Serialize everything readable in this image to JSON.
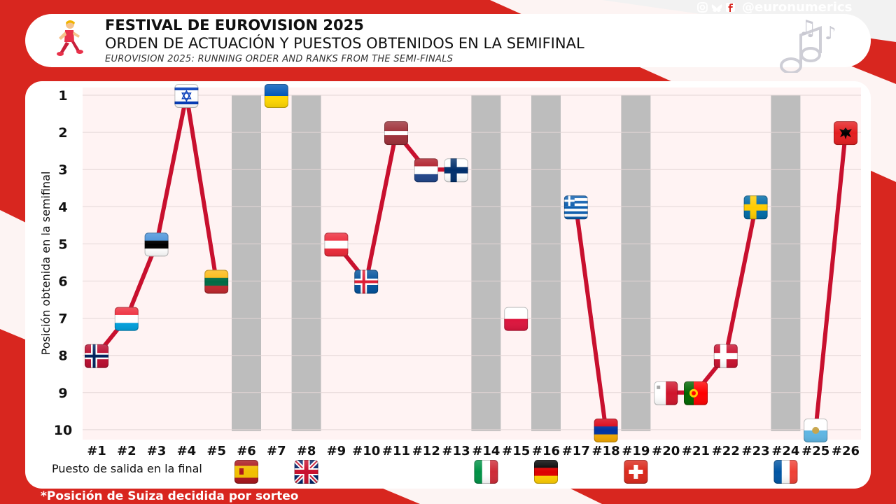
{
  "header": {
    "title": "FESTIVAL DE EUROVISION 2025",
    "subtitle": "ORDEN DE ACTUACIÓN Y PUESTOS OBTENIDOS EN LA SEMIFINAL",
    "subtitle_en": "EUROVISION 2025: RUNNING ORDER AND RANKS FROM THE SEMI-FINALS",
    "handle": "@euronumerics",
    "social_icons": [
      "instagram-icon",
      "bluesky-icon",
      "facebook-icon"
    ]
  },
  "footnote": "*Posición de Suiza decidida por sorteo",
  "colors": {
    "line": "#c8102e",
    "column": "#bdbdbd",
    "background": "#d8261f",
    "plot_bg": "#fff3f3"
  },
  "chart_data": {
    "type": "line",
    "ylabel": "Posición obtenida en la semifinal",
    "xlabel": "Puesto de salida en la final",
    "ylim": [
      1,
      10
    ],
    "y_reversed": true,
    "y_ticks": [
      "1",
      "2",
      "3",
      "4",
      "5",
      "6",
      "7",
      "8",
      "9",
      "10"
    ],
    "categories": [
      "#1",
      "#2",
      "#3",
      "#4",
      "#5",
      "#6",
      "#7",
      "#8",
      "#9",
      "#10",
      "#11",
      "#12",
      "#13",
      "#14",
      "#15",
      "#16",
      "#17",
      "#18",
      "#19",
      "#20",
      "#21",
      "#22",
      "#23",
      "#24",
      "#25",
      "#26"
    ],
    "points": [
      {
        "order": 1,
        "rank": 8,
        "flag": "norway"
      },
      {
        "order": 2,
        "rank": 7,
        "flag": "luxembourg"
      },
      {
        "order": 3,
        "rank": 5,
        "flag": "estonia"
      },
      {
        "order": 4,
        "rank": 1,
        "flag": "israel"
      },
      {
        "order": 5,
        "rank": 6,
        "flag": "lithuania"
      },
      {
        "order": 7,
        "rank": 1,
        "flag": "ukraine"
      },
      {
        "order": 9,
        "rank": 5,
        "flag": "austria"
      },
      {
        "order": 10,
        "rank": 6,
        "flag": "iceland"
      },
      {
        "order": 11,
        "rank": 2,
        "flag": "latvia"
      },
      {
        "order": 12,
        "rank": 3,
        "flag": "netherlands"
      },
      {
        "order": 13,
        "rank": 3,
        "flag": "finland"
      },
      {
        "order": 15,
        "rank": 7,
        "flag": "poland"
      },
      {
        "order": 17,
        "rank": 4,
        "flag": "greece"
      },
      {
        "order": 18,
        "rank": 10,
        "flag": "armenia"
      },
      {
        "order": 20,
        "rank": 9,
        "flag": "malta"
      },
      {
        "order": 21,
        "rank": 9,
        "flag": "portugal"
      },
      {
        "order": 22,
        "rank": 8,
        "flag": "denmark"
      },
      {
        "order": 23,
        "rank": 4,
        "flag": "sweden"
      },
      {
        "order": 25,
        "rank": 10,
        "flag": "san-marino"
      },
      {
        "order": 26,
        "rank": 2,
        "flag": "albania"
      }
    ],
    "segments": [
      [
        1,
        5
      ],
      [
        9,
        13
      ],
      [
        17,
        18
      ],
      [
        20,
        23
      ],
      [
        25,
        26
      ]
    ],
    "qualified_columns": [
      {
        "order": 6,
        "flag": "spain"
      },
      {
        "order": 8,
        "flag": "united-kingdom"
      },
      {
        "order": 14,
        "flag": "italy"
      },
      {
        "order": 16,
        "flag": "germany"
      },
      {
        "order": 19,
        "flag": "switzerland"
      },
      {
        "order": 24,
        "flag": "france"
      }
    ]
  }
}
